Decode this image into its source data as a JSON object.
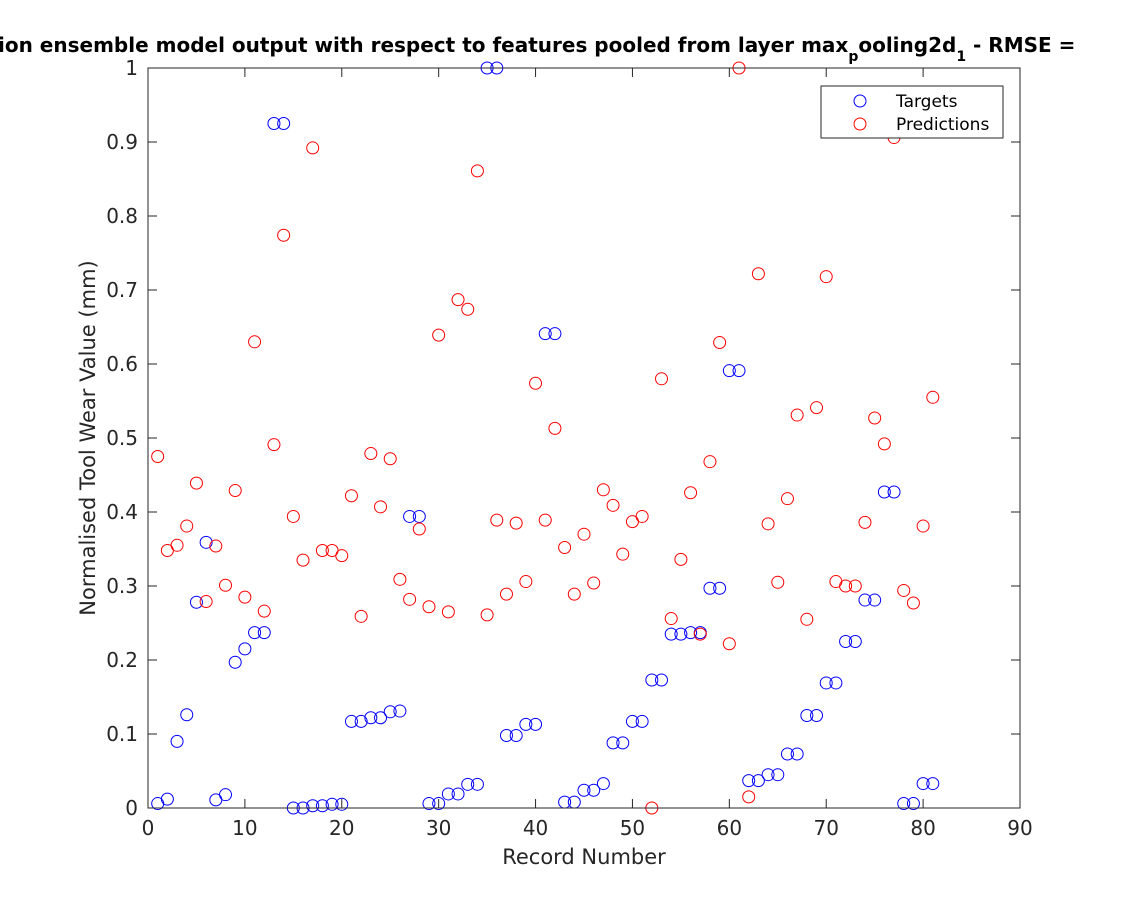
{
  "chart_data": {
    "type": "scatter",
    "title": {
      "part1": "ion ensemble model output with respect to features pooled from layer max",
      "sub1": "p",
      "part2": "ooling2d",
      "sub2": "1",
      "part3": " - RMSE ="
    },
    "xlabel": "Record Number",
    "ylabel": "Normalised Tool Wear Value (mm)",
    "xlim": [
      0,
      90
    ],
    "ylim": [
      0,
      1
    ],
    "x_ticks": [
      "0",
      "10",
      "20",
      "30",
      "40",
      "50",
      "60",
      "70",
      "80",
      "90"
    ],
    "y_ticks": [
      "0",
      "0.1",
      "0.2",
      "0.3",
      "0.4",
      "0.5",
      "0.6",
      "0.7",
      "0.8",
      "0.9",
      "1"
    ],
    "grid": false,
    "legend_position": "top-right",
    "series": [
      {
        "name": "Targets",
        "color": "#0000ff",
        "marker": "open-circle",
        "x": [
          1,
          2,
          3,
          4,
          5,
          6,
          7,
          8,
          9,
          10,
          11,
          12,
          13,
          14,
          15,
          16,
          17,
          18,
          19,
          20,
          21,
          22,
          23,
          24,
          25,
          26,
          27,
          28,
          29,
          30,
          31,
          32,
          33,
          34,
          35,
          36,
          37,
          38,
          39,
          40,
          41,
          42,
          43,
          44,
          45,
          46,
          47,
          48,
          49,
          50,
          51,
          52,
          53,
          54,
          55,
          56,
          57,
          58,
          59,
          60,
          61,
          62,
          63,
          64,
          65,
          66,
          67,
          68,
          69,
          70,
          71,
          72,
          73,
          74,
          75,
          76,
          77,
          78,
          79,
          80,
          81
        ],
        "y": [
          0.006,
          0.012,
          0.09,
          0.126,
          0.278,
          0.359,
          0.011,
          0.018,
          0.197,
          0.215,
          0.237,
          0.237,
          0.925,
          0.925,
          0.0,
          0.0,
          0.003,
          0.003,
          0.005,
          0.005,
          0.117,
          0.117,
          0.122,
          0.122,
          0.13,
          0.131,
          0.394,
          0.394,
          0.006,
          0.006,
          0.019,
          0.019,
          0.032,
          0.032,
          1.0,
          1.0,
          0.098,
          0.098,
          0.113,
          0.113,
          0.641,
          0.641,
          0.008,
          0.008,
          0.024,
          0.024,
          0.033,
          0.088,
          0.088,
          0.117,
          0.117,
          0.173,
          0.173,
          0.235,
          0.235,
          0.237,
          0.237,
          0.297,
          0.297,
          0.591,
          0.591,
          0.037,
          0.037,
          0.045,
          0.045,
          0.073,
          0.073,
          0.125,
          0.125,
          0.169,
          0.169,
          0.225,
          0.225,
          0.281,
          0.281,
          0.427,
          0.427,
          0.006,
          0.006,
          0.033,
          0.033
        ]
      },
      {
        "name": "Predictions",
        "color": "#ff0000",
        "marker": "open-circle",
        "x": [
          1,
          2,
          3,
          4,
          5,
          6,
          7,
          8,
          9,
          10,
          11,
          12,
          13,
          14,
          15,
          16,
          17,
          18,
          19,
          20,
          21,
          22,
          23,
          24,
          25,
          26,
          27,
          28,
          29,
          30,
          31,
          32,
          33,
          34,
          35,
          36,
          37,
          38,
          39,
          40,
          41,
          42,
          43,
          44,
          45,
          46,
          47,
          48,
          49,
          50,
          51,
          52,
          53,
          54,
          55,
          56,
          57,
          58,
          59,
          60,
          61,
          62,
          63,
          64,
          65,
          66,
          67,
          68,
          69,
          70,
          71,
          72,
          73,
          74,
          75,
          76,
          77,
          78,
          79,
          80,
          81
        ],
        "y": [
          0.475,
          0.348,
          0.355,
          0.381,
          0.439,
          0.279,
          0.354,
          0.301,
          0.429,
          0.285,
          0.63,
          0.266,
          0.491,
          0.774,
          0.394,
          0.335,
          0.892,
          0.348,
          0.348,
          0.341,
          0.422,
          0.259,
          0.479,
          0.407,
          0.472,
          0.309,
          0.282,
          0.377,
          0.272,
          0.639,
          0.265,
          0.687,
          0.674,
          0.861,
          0.261,
          0.389,
          0.289,
          0.385,
          0.306,
          0.574,
          0.389,
          0.513,
          0.352,
          0.289,
          0.37,
          0.304,
          0.43,
          0.409,
          0.343,
          0.387,
          0.394,
          0.0,
          0.58,
          0.256,
          0.336,
          0.426,
          0.235,
          0.468,
          0.629,
          0.222,
          1.0,
          0.015,
          0.722,
          0.384,
          0.305,
          0.418,
          0.531,
          0.255,
          0.541,
          0.718,
          0.306,
          0.3,
          0.3,
          0.386,
          0.527,
          0.492,
          0.906,
          0.294,
          0.277,
          0.381,
          0.555
        ]
      }
    ]
  }
}
